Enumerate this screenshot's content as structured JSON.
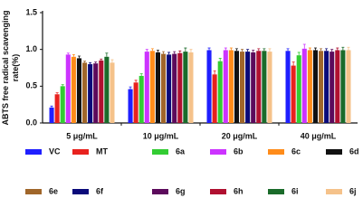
{
  "chart_data": {
    "type": "bar",
    "y_label": "ABTS free radical scavenging rate(%)",
    "categories": [
      "5 μg/mL",
      "10 μg/mL",
      "20 μg/mL",
      "40 μg/mL"
    ],
    "ylim": [
      0,
      1.5
    ],
    "yticks": [
      {
        "value": 0,
        "label": "0.0"
      },
      0.5,
      {
        "value": 1,
        "label": "1.0"
      },
      1.5
    ],
    "series": [
      {
        "name": "VC",
        "color": "#1f1fff",
        "values": [
          0.21,
          0.46,
          0.99,
          0.98
        ],
        "errors": [
          0.02,
          0.03,
          0.03,
          0.03
        ]
      },
      {
        "name": "MT",
        "color": "#e8221e",
        "values": [
          0.39,
          0.55,
          0.66,
          0.78
        ],
        "errors": [
          0.02,
          0.03,
          0.05,
          0.05
        ]
      },
      {
        "name": "6a",
        "color": "#33cc33",
        "values": [
          0.5,
          0.64,
          0.84,
          0.92
        ],
        "errors": [
          0.02,
          0.03,
          0.04,
          0.04
        ]
      },
      {
        "name": "6b",
        "color": "#cc33ff",
        "values": [
          0.93,
          0.97,
          0.99,
          1.01
        ],
        "errors": [
          0.02,
          0.03,
          0.03,
          0.06
        ]
      },
      {
        "name": "6c",
        "color": "#ff8c1a",
        "values": [
          0.9,
          0.98,
          0.99,
          0.99
        ],
        "errors": [
          0.03,
          0.03,
          0.03,
          0.03
        ]
      },
      {
        "name": "6d",
        "color": "#111111",
        "values": [
          0.88,
          0.96,
          0.98,
          0.99
        ],
        "errors": [
          0.03,
          0.03,
          0.03,
          0.03
        ]
      },
      {
        "name": "6e",
        "color": "#a0662a",
        "values": [
          0.82,
          0.94,
          0.97,
          0.98
        ],
        "errors": [
          0.02,
          0.03,
          0.03,
          0.03
        ]
      },
      {
        "name": "6f",
        "color": "#0a0a7a",
        "values": [
          0.8,
          0.93,
          0.97,
          0.98
        ],
        "errors": [
          0.02,
          0.03,
          0.03,
          0.03
        ]
      },
      {
        "name": "6g",
        "color": "#5c0a5c",
        "values": [
          0.81,
          0.94,
          0.96,
          0.97
        ],
        "errors": [
          0.02,
          0.03,
          0.03,
          0.03
        ]
      },
      {
        "name": "6h",
        "color": "#b01030",
        "values": [
          0.85,
          0.95,
          0.98,
          0.99
        ],
        "errors": [
          0.02,
          0.03,
          0.03,
          0.03
        ]
      },
      {
        "name": "6i",
        "color": "#1a6b2a",
        "values": [
          0.9,
          0.97,
          0.98,
          0.99
        ],
        "errors": [
          0.05,
          0.05,
          0.03,
          0.04
        ]
      },
      {
        "name": "6j",
        "color": "#f5c28a",
        "values": [
          0.82,
          0.96,
          0.97,
          0.99
        ],
        "errors": [
          0.04,
          0.04,
          0.04,
          0.04
        ]
      }
    ]
  }
}
